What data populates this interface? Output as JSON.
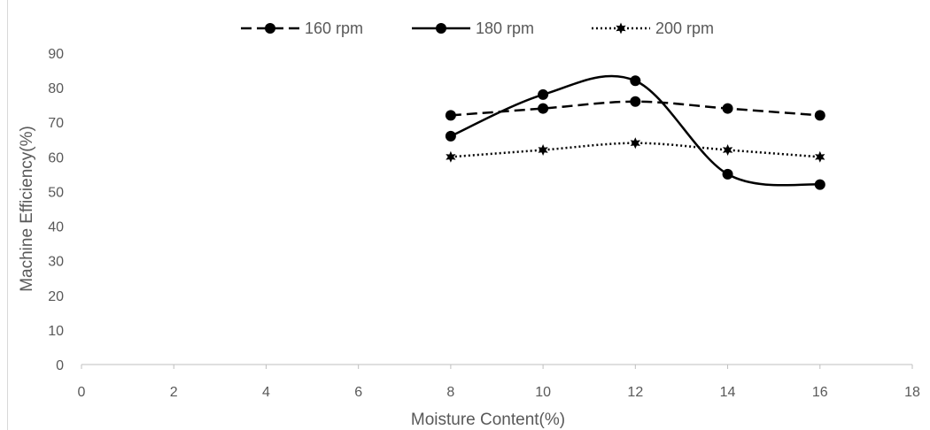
{
  "chart_data": {
    "type": "scatter",
    "xlabel": "Moisture Content(%)",
    "ylabel": "Machine Efficiency(%)",
    "xlim": [
      0,
      18
    ],
    "ylim": [
      0,
      90
    ],
    "xticks": [
      0,
      2,
      4,
      6,
      8,
      10,
      12,
      14,
      16,
      18
    ],
    "yticks": [
      0,
      10,
      20,
      30,
      40,
      50,
      60,
      70,
      80,
      90
    ],
    "grid": false,
    "legend": "top-center",
    "series": [
      {
        "name": "160 rpm",
        "style": "dashed",
        "marker": "circle",
        "x": [
          8,
          10,
          12,
          14,
          16
        ],
        "y": [
          72,
          74,
          76,
          74,
          72
        ],
        "color": "#000000"
      },
      {
        "name": "180 rpm",
        "style": "solid",
        "marker": "circle",
        "x": [
          8,
          10,
          12,
          14,
          16
        ],
        "y": [
          66,
          78,
          82,
          55,
          52
        ],
        "color": "#000000"
      },
      {
        "name": "200 rpm",
        "style": "dotted",
        "marker": "star",
        "x": [
          8,
          10,
          12,
          14,
          16
        ],
        "y": [
          60,
          62,
          64,
          62,
          60
        ],
        "color": "#000000"
      }
    ]
  }
}
